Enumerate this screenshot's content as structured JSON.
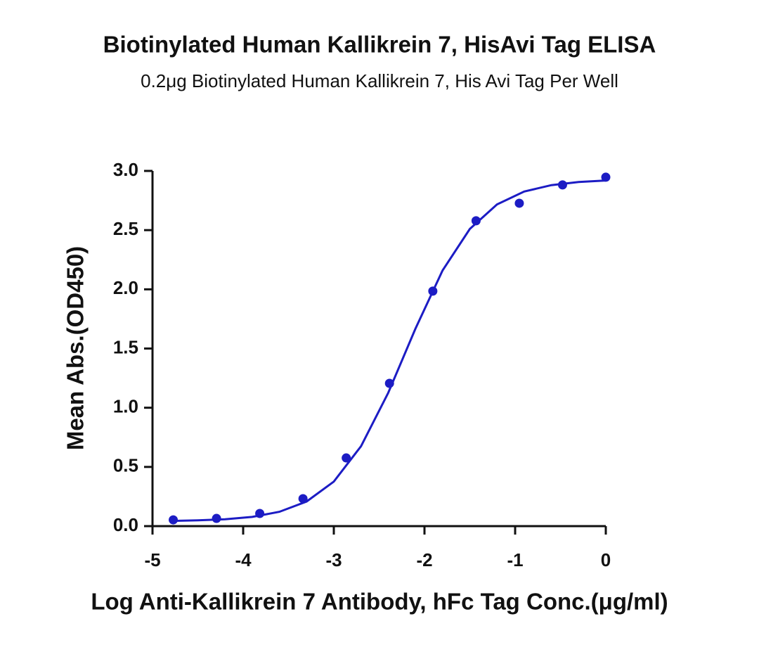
{
  "chart_data": {
    "type": "scatter",
    "title": "Biotinylated Human Kallikrein 7, HisAvi Tag ELISA",
    "subtitle": "0.2μg Biotinylated Human Kallikrein 7, His Avi Tag Per Well",
    "x_label": "Log Anti-Kallikrein 7 Antibody, hFc Tag Conc.(μg/ml)",
    "y_label": "Mean Abs.(OD450)",
    "xlim": [
      -5,
      0
    ],
    "xticks": [
      -5,
      -4,
      -3,
      -2,
      -1,
      0
    ],
    "ylim": [
      0,
      3
    ],
    "yticks": [
      {
        "value": 0,
        "label": "0.0"
      },
      0.5,
      {
        "value": 1,
        "label": "1.0"
      },
      1.5,
      {
        "value": 2,
        "label": "2.0"
      },
      2.5,
      {
        "value": 3,
        "label": "3.0"
      }
    ],
    "series": [
      {
        "mode": "markers",
        "color": "#1c1cc4",
        "x": [
          -4.771,
          -4.294,
          -3.817,
          -3.34,
          -2.863,
          -2.386,
          -1.908,
          -1.431,
          -0.954,
          -0.477,
          0
        ],
        "values": [
          0.053,
          0.065,
          0.107,
          0.232,
          0.576,
          1.206,
          1.985,
          2.579,
          2.727,
          2.882,
          2.947
        ]
      },
      {
        "mode": "line",
        "color": "#1c1cc4",
        "x": [
          -4.8,
          -4.5,
          -4.2,
          -3.9,
          -3.6,
          -3.3,
          -3.0,
          -2.7,
          -2.4,
          -2.1,
          -1.8,
          -1.5,
          -1.2,
          -0.9,
          -0.6,
          -0.3,
          0
        ],
        "values": [
          0.044,
          0.049,
          0.058,
          0.078,
          0.121,
          0.208,
          0.376,
          0.675,
          1.126,
          1.667,
          2.16,
          2.51,
          2.717,
          2.826,
          2.88,
          2.907,
          2.919
        ]
      }
    ]
  }
}
